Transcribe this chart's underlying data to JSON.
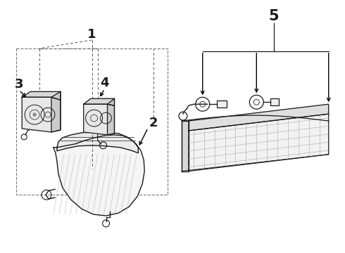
{
  "bg_color": "#ffffff",
  "line_color": "#1a1a1a",
  "fig_width": 4.9,
  "fig_height": 3.6,
  "dpi": 100,
  "label_fontsize": 13,
  "label_fontsize_small": 11
}
